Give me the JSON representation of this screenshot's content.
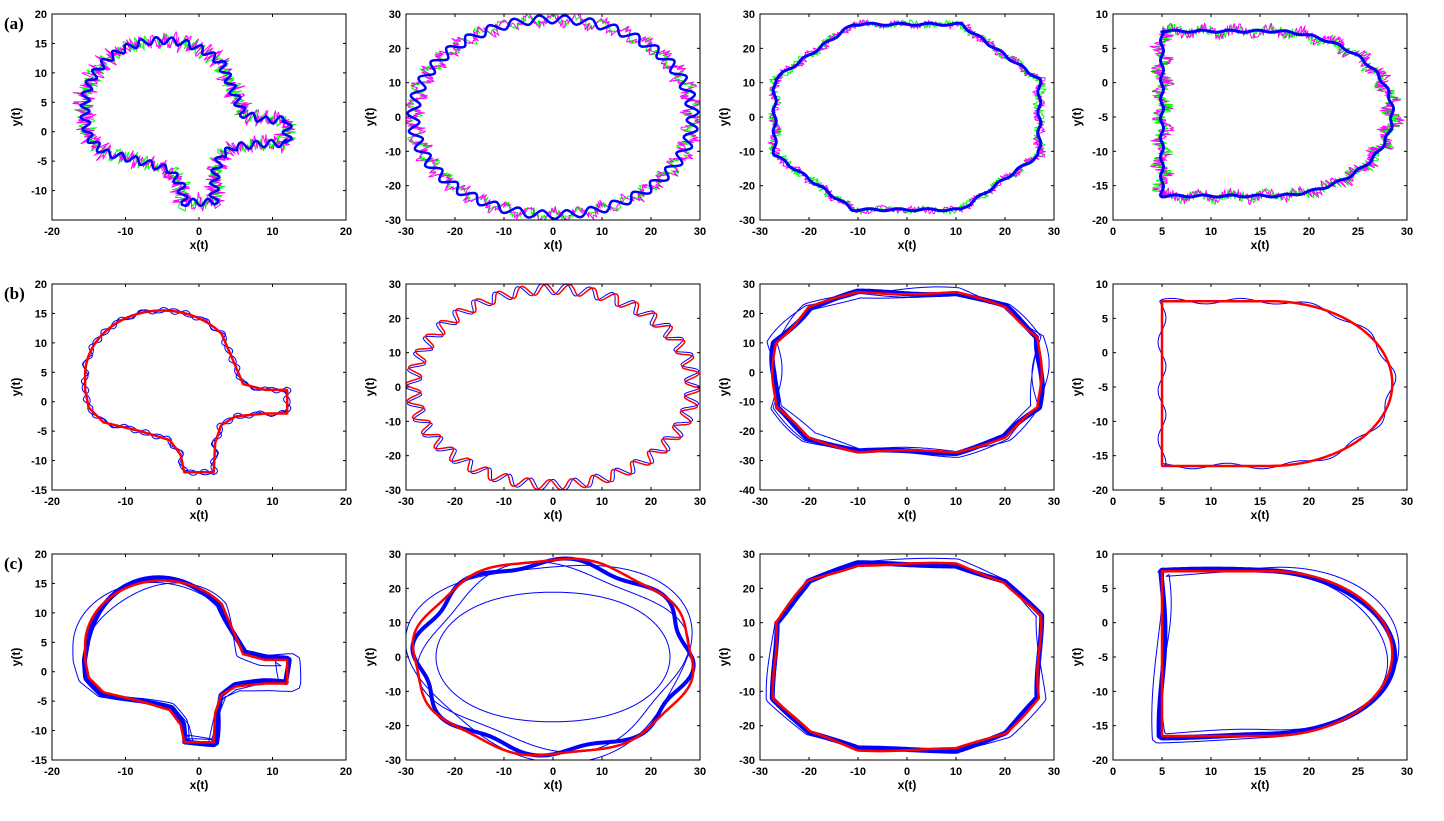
{
  "row_labels": [
    "(a)",
    "(b)",
    "(c)"
  ],
  "colors": {
    "blue": "#0000ff",
    "red": "#ff0000",
    "magenta": "#ff00ff",
    "green": "#00ff00",
    "axis": "#000000"
  },
  "chart_data": [
    {
      "panel": "a1",
      "row": 0,
      "col": 0,
      "type": "line",
      "shape": "blob",
      "xlabel": "x(t)",
      "ylabel": "y(t)",
      "xlim": [
        -20,
        20
      ],
      "ylim": [
        -15,
        20
      ],
      "xticks": [
        -20,
        -10,
        0,
        10,
        20
      ],
      "yticks": [
        -10,
        -5,
        0,
        5,
        10,
        15,
        20
      ],
      "series": [
        {
          "color": "green",
          "width": 1,
          "style": "zigzag",
          "amp": 0.6,
          "freq": 70,
          "scale": 1.0,
          "jitter": 0.9
        },
        {
          "color": "magenta",
          "width": 1,
          "style": "zigzag",
          "amp": 0.7,
          "freq": 60,
          "scale": 1.0,
          "jitter": 1.1
        },
        {
          "color": "blue",
          "width": 2.5,
          "style": "wave",
          "amp": 0.6,
          "freq": 45,
          "scale": 1.0
        }
      ]
    },
    {
      "panel": "a2",
      "row": 0,
      "col": 1,
      "type": "line",
      "shape": "ellipse",
      "xlabel": "x(t)",
      "ylabel": "y(t)",
      "xlim": [
        -30,
        30
      ],
      "ylim": [
        -30,
        30
      ],
      "xticks": [
        -30,
        -20,
        -10,
        0,
        10,
        20,
        30
      ],
      "yticks": [
        -30,
        -20,
        -10,
        0,
        10,
        20,
        30
      ],
      "series": [
        {
          "color": "green",
          "width": 1,
          "style": "zigzag",
          "amp": 1.2,
          "freq": 35,
          "scale": 1.0,
          "jitter": 1.0
        },
        {
          "color": "magenta",
          "width": 1,
          "style": "zigzag",
          "amp": 1.4,
          "freq": 35,
          "scale": 1.0,
          "jitter": 1.2
        },
        {
          "color": "blue",
          "width": 2.5,
          "style": "wave",
          "amp": 1.2,
          "freq": 35,
          "scale": 1.0
        }
      ]
    },
    {
      "panel": "a3",
      "row": 0,
      "col": 2,
      "type": "line",
      "shape": "octagon",
      "xlabel": "x(t)",
      "ylabel": "y(t)",
      "xlim": [
        -30,
        30
      ],
      "ylim": [
        -30,
        30
      ],
      "xticks": [
        -30,
        -20,
        -10,
        0,
        10,
        20,
        30
      ],
      "yticks": [
        -30,
        -20,
        -10,
        0,
        10,
        20,
        30
      ],
      "series": [
        {
          "color": "green",
          "width": 1,
          "style": "zigzag",
          "amp": 0.6,
          "freq": 20,
          "scale": 1.0,
          "jitter": 0.8
        },
        {
          "color": "magenta",
          "width": 1,
          "style": "zigzag",
          "amp": 0.6,
          "freq": 25,
          "scale": 1.0,
          "jitter": 0.8
        },
        {
          "color": "blue",
          "width": 3,
          "style": "wave",
          "amp": 0.3,
          "freq": 30,
          "scale": 1.0
        }
      ]
    },
    {
      "panel": "a4",
      "row": 0,
      "col": 3,
      "type": "line",
      "shape": "dshape",
      "xlabel": "x(t)",
      "ylabel": "y(t)",
      "xlim": [
        0,
        30
      ],
      "ylim": [
        -20,
        10
      ],
      "xticks": [
        0,
        5,
        10,
        15,
        20,
        25,
        30
      ],
      "yticks": [
        -20,
        -15,
        -10,
        -5,
        0,
        5,
        10
      ],
      "series": [
        {
          "color": "green",
          "width": 1,
          "style": "zigzag",
          "amp": 0.4,
          "freq": 25,
          "scale": 1.0,
          "jitter": 0.8
        },
        {
          "color": "magenta",
          "width": 1,
          "style": "zigzag",
          "amp": 0.5,
          "freq": 25,
          "scale": 1.0,
          "jitter": 0.8
        },
        {
          "color": "blue",
          "width": 3,
          "style": "wave",
          "amp": 0.15,
          "freq": 30,
          "scale": 1.0
        }
      ]
    },
    {
      "panel": "b1",
      "row": 1,
      "col": 0,
      "type": "line",
      "shape": "blob",
      "xlabel": "x(t)",
      "ylabel": "y(t)",
      "xlim": [
        -20,
        20
      ],
      "ylim": [
        -15,
        20
      ],
      "xticks": [
        -20,
        -10,
        0,
        10,
        20
      ],
      "yticks": [
        -15,
        -10,
        -5,
        0,
        5,
        10,
        15,
        20
      ],
      "series": [
        {
          "color": "blue",
          "width": 1,
          "style": "wave",
          "amp": 0.5,
          "freq": 30,
          "scale": 1.0
        },
        {
          "color": "blue",
          "width": 1,
          "style": "wave",
          "amp": 0.4,
          "freq": 22,
          "scale": 1.0
        },
        {
          "color": "red",
          "width": 2.5,
          "style": "plain",
          "amp": 0,
          "freq": 0,
          "scale": 1.0
        }
      ]
    },
    {
      "panel": "b2",
      "row": 1,
      "col": 1,
      "type": "line",
      "shape": "ellipse",
      "xlabel": "x(t)",
      "ylabel": "y(t)",
      "xlim": [
        -30,
        30
      ],
      "ylim": [
        -30,
        30
      ],
      "xticks": [
        -30,
        -20,
        -10,
        0,
        10,
        20,
        30
      ],
      "yticks": [
        -30,
        -20,
        -10,
        0,
        10,
        20,
        30
      ],
      "series": [
        {
          "color": "blue",
          "width": 1,
          "style": "wave",
          "amp": 1.6,
          "freq": 38,
          "scale": 1.0
        },
        {
          "color": "red",
          "width": 1.5,
          "style": "wave",
          "amp": 1.5,
          "freq": 38,
          "scale": 1.0
        }
      ]
    },
    {
      "panel": "b3",
      "row": 1,
      "col": 2,
      "type": "line",
      "shape": "hexround",
      "xlabel": "x(t)",
      "ylabel": "y(t)",
      "xlim": [
        -30,
        30
      ],
      "ylim": [
        -40,
        30
      ],
      "xticks": [
        -30,
        -20,
        -10,
        0,
        10,
        20,
        30
      ],
      "yticks": [
        -40,
        -30,
        -20,
        -10,
        0,
        10,
        20,
        30
      ],
      "series": [
        {
          "color": "blue",
          "width": 1,
          "style": "wave",
          "amp": 1.5,
          "freq": 4,
          "scale": 1.0
        },
        {
          "color": "blue",
          "width": 1,
          "style": "wave",
          "amp": 1.2,
          "freq": 5,
          "scale": 1.03
        },
        {
          "color": "blue",
          "width": 1,
          "style": "wave",
          "amp": 1.0,
          "freq": 3,
          "scale": 0.97
        },
        {
          "color": "blue",
          "width": 5,
          "style": "wave",
          "amp": 0.6,
          "freq": 6,
          "scale": 1.0
        },
        {
          "color": "red",
          "width": 2.5,
          "style": "wave",
          "amp": 0.5,
          "freq": 6,
          "scale": 1.0
        }
      ]
    },
    {
      "panel": "b4",
      "row": 1,
      "col": 3,
      "type": "line",
      "shape": "dshape",
      "xlabel": "x(t)",
      "ylabel": "y(t)",
      "xlim": [
        0,
        30
      ],
      "ylim": [
        -20,
        10
      ],
      "xticks": [
        0,
        5,
        10,
        15,
        20,
        25,
        30
      ],
      "yticks": [
        -20,
        -15,
        -10,
        -5,
        0,
        5,
        10
      ],
      "series": [
        {
          "color": "blue",
          "width": 1,
          "style": "wave",
          "amp": 0.4,
          "freq": 12,
          "scale": 1.0
        },
        {
          "color": "red",
          "width": 2.5,
          "style": "plain",
          "amp": 0,
          "freq": 0,
          "scale": 1.0
        }
      ]
    },
    {
      "panel": "c1",
      "row": 2,
      "col": 0,
      "type": "line",
      "shape": "blob",
      "xlabel": "x(t)",
      "ylabel": "y(t)",
      "xlim": [
        -20,
        20
      ],
      "ylim": [
        -15,
        20
      ],
      "xticks": [
        -20,
        -10,
        0,
        10,
        20
      ],
      "yticks": [
        -15,
        -10,
        -5,
        0,
        5,
        10,
        15,
        20
      ],
      "series": [
        {
          "color": "blue",
          "width": 1,
          "style": "wave",
          "amp": 1.2,
          "freq": 2,
          "scale": 1.04
        },
        {
          "color": "blue",
          "width": 1,
          "style": "wave",
          "amp": 1.0,
          "freq": 3,
          "scale": 0.96
        },
        {
          "color": "blue",
          "width": 5,
          "style": "wave",
          "amp": 0.5,
          "freq": 4,
          "scale": 1.0
        },
        {
          "color": "red",
          "width": 2.5,
          "style": "plain",
          "amp": 0,
          "freq": 0,
          "scale": 1.0
        }
      ]
    },
    {
      "panel": "c2",
      "row": 2,
      "col": 1,
      "type": "line",
      "shape": "ellipse",
      "xlabel": "x(t)",
      "ylabel": "y(t)",
      "xlim": [
        -30,
        30
      ],
      "ylim": [
        -30,
        30
      ],
      "xticks": [
        -30,
        -20,
        -10,
        0,
        10,
        20,
        30
      ],
      "yticks": [
        -30,
        -20,
        -10,
        0,
        10,
        20,
        30
      ],
      "series": [
        {
          "color": "blue",
          "width": 1,
          "style": "wave",
          "amp": 2.5,
          "freq": 3,
          "scale": 1.0
        },
        {
          "color": "blue",
          "width": 1,
          "style": "wave",
          "amp": 2.0,
          "freq": 4,
          "scale": 0.92
        },
        {
          "color": "blue",
          "width": 1,
          "style": "wave",
          "amp": 2.5,
          "freq": 2,
          "scale": 0.75
        },
        {
          "color": "blue",
          "width": 4,
          "style": "wave",
          "amp": 1.2,
          "freq": 8,
          "scale": 0.97
        },
        {
          "color": "red",
          "width": 2.5,
          "style": "wave",
          "amp": 0.6,
          "freq": 8,
          "scale": 1.0
        }
      ]
    },
    {
      "panel": "c3",
      "row": 2,
      "col": 2,
      "type": "line",
      "shape": "hexround",
      "xlabel": "x(t)",
      "ylabel": "y(t)",
      "xlim": [
        -30,
        30
      ],
      "ylim": [
        -30,
        30
      ],
      "xticks": [
        -30,
        -20,
        -10,
        0,
        10,
        20,
        30
      ],
      "yticks": [
        -30,
        -20,
        -10,
        0,
        10,
        20,
        30
      ],
      "series": [
        {
          "color": "blue",
          "width": 1,
          "style": "wave",
          "amp": 1.2,
          "freq": 3,
          "scale": 1.02
        },
        {
          "color": "blue",
          "width": 5,
          "style": "wave",
          "amp": 0.5,
          "freq": 4,
          "scale": 1.0
        },
        {
          "color": "red",
          "width": 2.5,
          "style": "wave",
          "amp": 0.4,
          "freq": 6,
          "scale": 1.0
        }
      ]
    },
    {
      "panel": "c4",
      "row": 2,
      "col": 3,
      "type": "line",
      "shape": "dshape",
      "xlabel": "x(t)",
      "ylabel": "y(t)",
      "xlim": [
        0,
        30
      ],
      "ylim": [
        -20,
        10
      ],
      "xticks": [
        0,
        5,
        10,
        15,
        20,
        25,
        30
      ],
      "yticks": [
        -20,
        -15,
        -10,
        -5,
        0,
        5,
        10
      ],
      "series": [
        {
          "color": "blue",
          "width": 1,
          "style": "wave",
          "amp": 0.6,
          "freq": 2,
          "scale": 1.04
        },
        {
          "color": "blue",
          "width": 1,
          "style": "wave",
          "amp": 0.5,
          "freq": 3,
          "scale": 0.96
        },
        {
          "color": "blue",
          "width": 5,
          "style": "wave",
          "amp": 0.3,
          "freq": 3,
          "scale": 1.0
        },
        {
          "color": "red",
          "width": 2.5,
          "style": "plain",
          "amp": 0,
          "freq": 0,
          "scale": 1.0
        }
      ]
    }
  ]
}
